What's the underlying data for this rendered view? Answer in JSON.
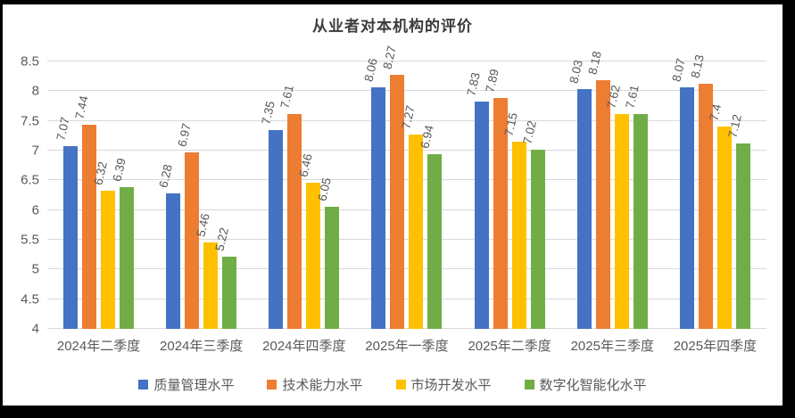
{
  "chart_data": {
    "type": "bar",
    "title": "从业者对本机构的评价",
    "categories": [
      "2024年二季度",
      "2024年三季度",
      "2024年四季度",
      "2025年一季度",
      "2025年二季度",
      "2025年三季度",
      "2025年四季度"
    ],
    "series": [
      {
        "name": "质量管理水平",
        "color": "#4472C4",
        "values": [
          7.07,
          6.28,
          7.35,
          8.06,
          7.83,
          8.03,
          8.07
        ]
      },
      {
        "name": "技术能力水平",
        "color": "#ED7D31",
        "values": [
          7.44,
          6.97,
          7.61,
          8.27,
          7.89,
          8.18,
          8.13
        ]
      },
      {
        "name": "市场开发水平",
        "color": "#FFC000",
        "values": [
          6.32,
          5.46,
          6.46,
          7.27,
          7.15,
          7.62,
          7.4
        ]
      },
      {
        "name": "数字化智能化水平",
        "color": "#70AD47",
        "values": [
          6.39,
          5.22,
          6.05,
          6.94,
          7.02,
          7.61,
          7.12
        ]
      }
    ],
    "ylim": [
      4,
      8.5
    ],
    "ytick_step": 0.5,
    "ytick_labels": [
      "4",
      "4.5",
      "5",
      "5.5",
      "6",
      "6.5",
      "7",
      "7.5",
      "8",
      "8.5"
    ],
    "grid": true,
    "data_labels": true,
    "legend_position": "bottom",
    "xlabel": "",
    "ylabel": ""
  },
  "colors": {
    "gridline": "#D9D9D9",
    "axis_text": "#595959",
    "title_text": "#3B3B3B",
    "canvas_background": "#FFFFFF",
    "frame": "#000000"
  }
}
